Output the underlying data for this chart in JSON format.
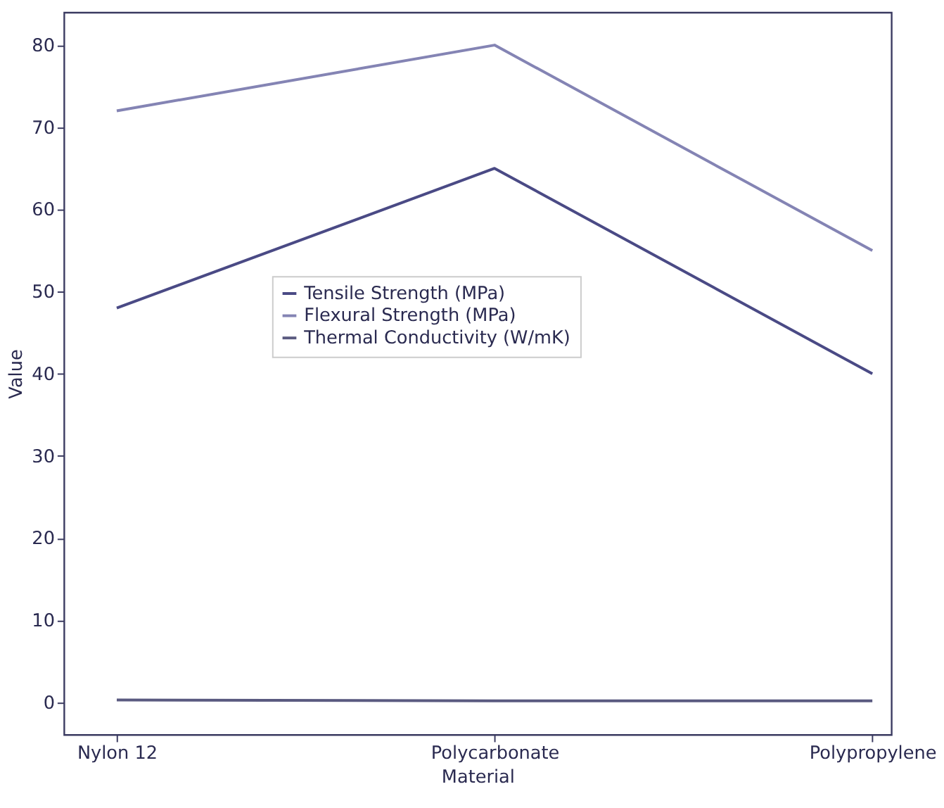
{
  "chart_data": {
    "type": "line",
    "xlabel": "Material",
    "ylabel": "Value",
    "categories": [
      "Nylon 12",
      "Polycarbonate",
      "Polypropylene"
    ],
    "series": [
      {
        "name": "Tensile Strength (MPa)",
        "color": "#4a4a85",
        "values": [
          48,
          65,
          40
        ]
      },
      {
        "name": "Flexural Strength (MPa)",
        "color": "#8484b4",
        "values": [
          72,
          80,
          55
        ]
      },
      {
        "name": "Thermal Conductivity (W/mK)",
        "color": "#5a5a80",
        "values": [
          0.3,
          0.2,
          0.2
        ]
      }
    ],
    "ylim": [
      -3.9,
      84
    ],
    "yticks": [
      0,
      10,
      20,
      30,
      40,
      50,
      60,
      70,
      80
    ],
    "grid": false,
    "legend": "center",
    "marker": "none",
    "line_style": "solid"
  }
}
